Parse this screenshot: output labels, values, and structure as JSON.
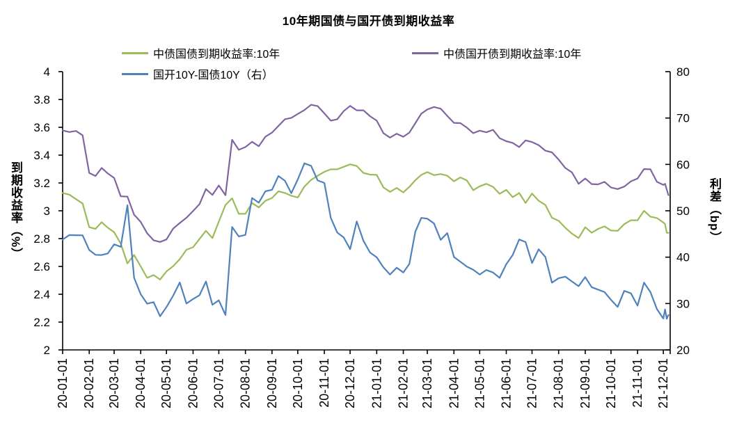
{
  "chart_data": {
    "type": "line",
    "title": "10年期国债与国开债到期收益率",
    "legend_position": "top",
    "grid": false,
    "left_axis": {
      "label": "到期收益率（%）",
      "min": 2,
      "max": 4,
      "tick_labels": [
        "2",
        "2.2",
        "2.4",
        "2.6",
        "2.8",
        "3",
        "3.2",
        "3.4",
        "3.6",
        "3.8",
        "4"
      ]
    },
    "right_axis": {
      "label": "利差（bp）",
      "min": 20,
      "max": 80,
      "tick_labels": [
        "20",
        "30",
        "40",
        "50",
        "60",
        "70",
        "80"
      ]
    },
    "x_axis": {
      "tick_labels": [
        "20-01-01",
        "20-02-01",
        "20-03-01",
        "20-04-01",
        "20-05-01",
        "20-06-01",
        "20-07-01",
        "20-08-01",
        "20-09-01",
        "20-10-01",
        "20-11-01",
        "20-12-01",
        "21-01-01",
        "21-02-01",
        "21-03-01",
        "21-04-01",
        "21-05-01",
        "21-06-01",
        "21-07-01",
        "21-08-01",
        "21-09-01",
        "21-10-01",
        "21-11-01",
        "21-12-01"
      ],
      "month_start_days": [
        0,
        31,
        60,
        91,
        121,
        152,
        182,
        213,
        244,
        274,
        305,
        335,
        366,
        397,
        425,
        456,
        486,
        517,
        547,
        578,
        609,
        639,
        670,
        700,
        708
      ],
      "sample_step_months": 0.25
    },
    "series": [
      {
        "name": "中债国债到期收益率:10年",
        "color": "#9BBB59",
        "axis": "left",
        "values": [
          3.14,
          3.12,
          3.08,
          3.04,
          2.89,
          2.87,
          2.91,
          2.89,
          2.85,
          2.76,
          2.61,
          2.69,
          2.6,
          2.51,
          2.55,
          2.51,
          2.56,
          2.59,
          2.66,
          2.72,
          2.73,
          2.81,
          2.86,
          2.8,
          2.91,
          3.05,
          3.09,
          2.97,
          2.99,
          3.06,
          3.02,
          3.06,
          3.1,
          3.14,
          3.12,
          3.12,
          3.1,
          3.17,
          3.21,
          3.26,
          3.28,
          3.29,
          3.31,
          3.32,
          3.33,
          3.31,
          3.28,
          3.26,
          3.25,
          3.18,
          3.14,
          3.16,
          3.12,
          3.18,
          3.22,
          3.25,
          3.29,
          3.26,
          3.26,
          3.24,
          3.22,
          3.24,
          3.21,
          3.16,
          3.18,
          3.19,
          3.16,
          3.13,
          3.15,
          3.09,
          3.14,
          3.06,
          3.12,
          3.06,
          3.05,
          2.95,
          2.92,
          2.89,
          2.84,
          2.8,
          2.87,
          2.85,
          2.87,
          2.88,
          2.87,
          2.86,
          2.9,
          2.92,
          2.94,
          3.0,
          2.95,
          2.96,
          2.92,
          2.9,
          2.83,
          2.85
        ]
      },
      {
        "name": "中债国开债到期收益率:10年",
        "color": "#8064A2",
        "axis": "left",
        "values": [
          3.59,
          3.57,
          3.57,
          3.53,
          3.28,
          3.25,
          3.3,
          3.28,
          3.24,
          3.1,
          3.09,
          2.98,
          2.92,
          2.83,
          2.8,
          2.78,
          2.79,
          2.86,
          2.92,
          2.95,
          2.99,
          3.06,
          3.16,
          3.11,
          3.17,
          3.12,
          3.51,
          3.43,
          3.47,
          3.5,
          3.46,
          3.52,
          3.57,
          3.61,
          3.65,
          3.68,
          3.7,
          3.72,
          3.75,
          3.76,
          3.7,
          3.64,
          3.67,
          3.72,
          3.75,
          3.71,
          3.73,
          3.68,
          3.64,
          3.57,
          3.53,
          3.55,
          3.52,
          3.57,
          3.63,
          3.69,
          3.74,
          3.75,
          3.73,
          3.67,
          3.64,
          3.63,
          3.59,
          3.57,
          3.58,
          3.56,
          3.57,
          3.53,
          3.5,
          3.48,
          3.47,
          3.51,
          3.49,
          3.46,
          3.44,
          3.42,
          3.36,
          3.32,
          3.28,
          3.19,
          3.22,
          3.2,
          3.19,
          3.2,
          3.18,
          3.16,
          3.17,
          3.2,
          3.24,
          3.3,
          3.29,
          3.22,
          3.19,
          3.19,
          3.14,
          3.12
        ]
      },
      {
        "name": "国开10Y-国债10Y（右）",
        "color": "#4F81BD",
        "axis": "right",
        "values": [
          44.5,
          45,
          44.5,
          44,
          42,
          40.5,
          40,
          41.5,
          43,
          42,
          50.5,
          36,
          32,
          29.5,
          31,
          27.5,
          29,
          31,
          35,
          30,
          30.5,
          32.5,
          35,
          29.5,
          30,
          28,
          46.5,
          44,
          45.5,
          53,
          51.5,
          53.5,
          55,
          57.5,
          56,
          54.5,
          57,
          60,
          59,
          57,
          56,
          48,
          46,
          44.5,
          41.5,
          47,
          44,
          41,
          39.5,
          38.5,
          36.5,
          37.5,
          36,
          39,
          45.5,
          48,
          49,
          47.5,
          43.5,
          44.5,
          40.5,
          39,
          37.5,
          38,
          36.5,
          37,
          36,
          36,
          38.5,
          40,
          44.5,
          43.5,
          38.5,
          41,
          40.5,
          34.5,
          35,
          36.5,
          35,
          33.5,
          35,
          34,
          33,
          32,
          31.5,
          29.5,
          32.5,
          31.5,
          30,
          34.5,
          32,
          29.5,
          27,
          28.5,
          26,
          28
        ]
      }
    ]
  }
}
